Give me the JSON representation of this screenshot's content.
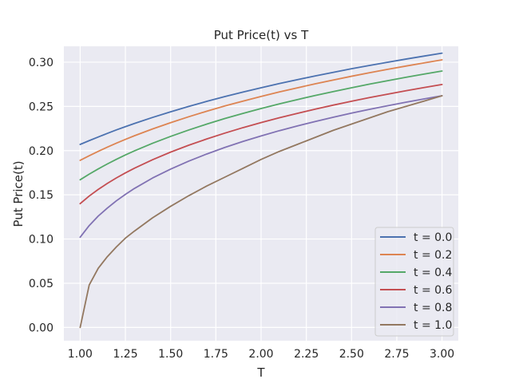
{
  "chart_data": {
    "type": "line",
    "title": "Put Price(t) vs T",
    "xlabel": "T",
    "ylabel": "Put Price(t)",
    "xlim": [
      0.91,
      3.09
    ],
    "ylim": [
      -0.015,
      0.318
    ],
    "xticks": [
      "1.00",
      "1.25",
      "1.50",
      "1.75",
      "2.00",
      "2.25",
      "2.50",
      "2.75",
      "3.00"
    ],
    "yticks": [
      "0.00",
      "0.05",
      "0.10",
      "0.15",
      "0.20",
      "0.25",
      "0.30"
    ],
    "grid": true,
    "legend_position": "lower-right",
    "x": [
      1.0,
      1.05,
      1.1,
      1.15,
      1.2,
      1.25,
      1.3,
      1.4,
      1.5,
      1.6,
      1.7,
      1.8,
      1.9,
      2.0,
      2.1,
      2.2,
      2.3,
      2.4,
      2.5,
      2.6,
      2.7,
      2.8,
      2.9,
      3.0
    ],
    "series": [
      {
        "name": "t = 0.0",
        "color": "#4c72b0",
        "values": [
          0.207,
          0.2113,
          0.2154,
          0.2195,
          0.2234,
          0.2271,
          0.2307,
          0.2375,
          0.2439,
          0.25,
          0.2557,
          0.2611,
          0.2662,
          0.2711,
          0.2758,
          0.2802,
          0.2845,
          0.2886,
          0.2926,
          0.2963,
          0.3,
          0.3035,
          0.3069,
          0.3102
        ]
      },
      {
        "name": "t = 0.2",
        "color": "#dd8452",
        "values": [
          0.189,
          0.1942,
          0.1992,
          0.2039,
          0.2084,
          0.2127,
          0.2168,
          0.2245,
          0.2316,
          0.2383,
          0.2446,
          0.2505,
          0.256,
          0.2613,
          0.2663,
          0.271,
          0.2756,
          0.2799,
          0.2841,
          0.2881,
          0.2919,
          0.2956,
          0.2992,
          0.3027
        ]
      },
      {
        "name": "t = 0.4",
        "color": "#55a868",
        "values": [
          0.167,
          0.1734,
          0.1793,
          0.1849,
          0.1901,
          0.1951,
          0.1997,
          0.2083,
          0.2161,
          0.2233,
          0.23,
          0.2363,
          0.2421,
          0.2476,
          0.2528,
          0.2577,
          0.2624,
          0.2668,
          0.2711,
          0.2752,
          0.2791,
          0.2829,
          0.2865,
          0.29
        ]
      },
      {
        "name": "t = 0.6",
        "color": "#c44e52",
        "values": [
          0.14,
          0.1486,
          0.1561,
          0.1629,
          0.1691,
          0.1748,
          0.1801,
          0.1897,
          0.1983,
          0.2061,
          0.2132,
          0.2198,
          0.226,
          0.2317,
          0.2371,
          0.2421,
          0.2469,
          0.2515,
          0.2558,
          0.26,
          0.2639,
          0.2677,
          0.2713,
          0.2748
        ]
      },
      {
        "name": "t = 0.8",
        "color": "#8172b3",
        "values": [
          0.102,
          0.1152,
          0.126,
          0.135,
          0.1432,
          0.1505,
          0.1572,
          0.169,
          0.1791,
          0.1881,
          0.1962,
          0.2036,
          0.2104,
          0.2166,
          0.2225,
          0.2279,
          0.233,
          0.2378,
          0.2424,
          0.2467,
          0.2508,
          0.2547,
          0.2584,
          0.262
        ]
      },
      {
        "name": "t = 1.0",
        "color": "#937860",
        "values": [
          0.0,
          0.048,
          0.067,
          0.08,
          0.091,
          0.101,
          0.109,
          0.124,
          0.137,
          0.149,
          0.16,
          0.17,
          0.18,
          0.19,
          0.199,
          0.207,
          0.215,
          0.223,
          0.23,
          0.237,
          0.244,
          0.25,
          0.256,
          0.262
        ]
      }
    ]
  }
}
